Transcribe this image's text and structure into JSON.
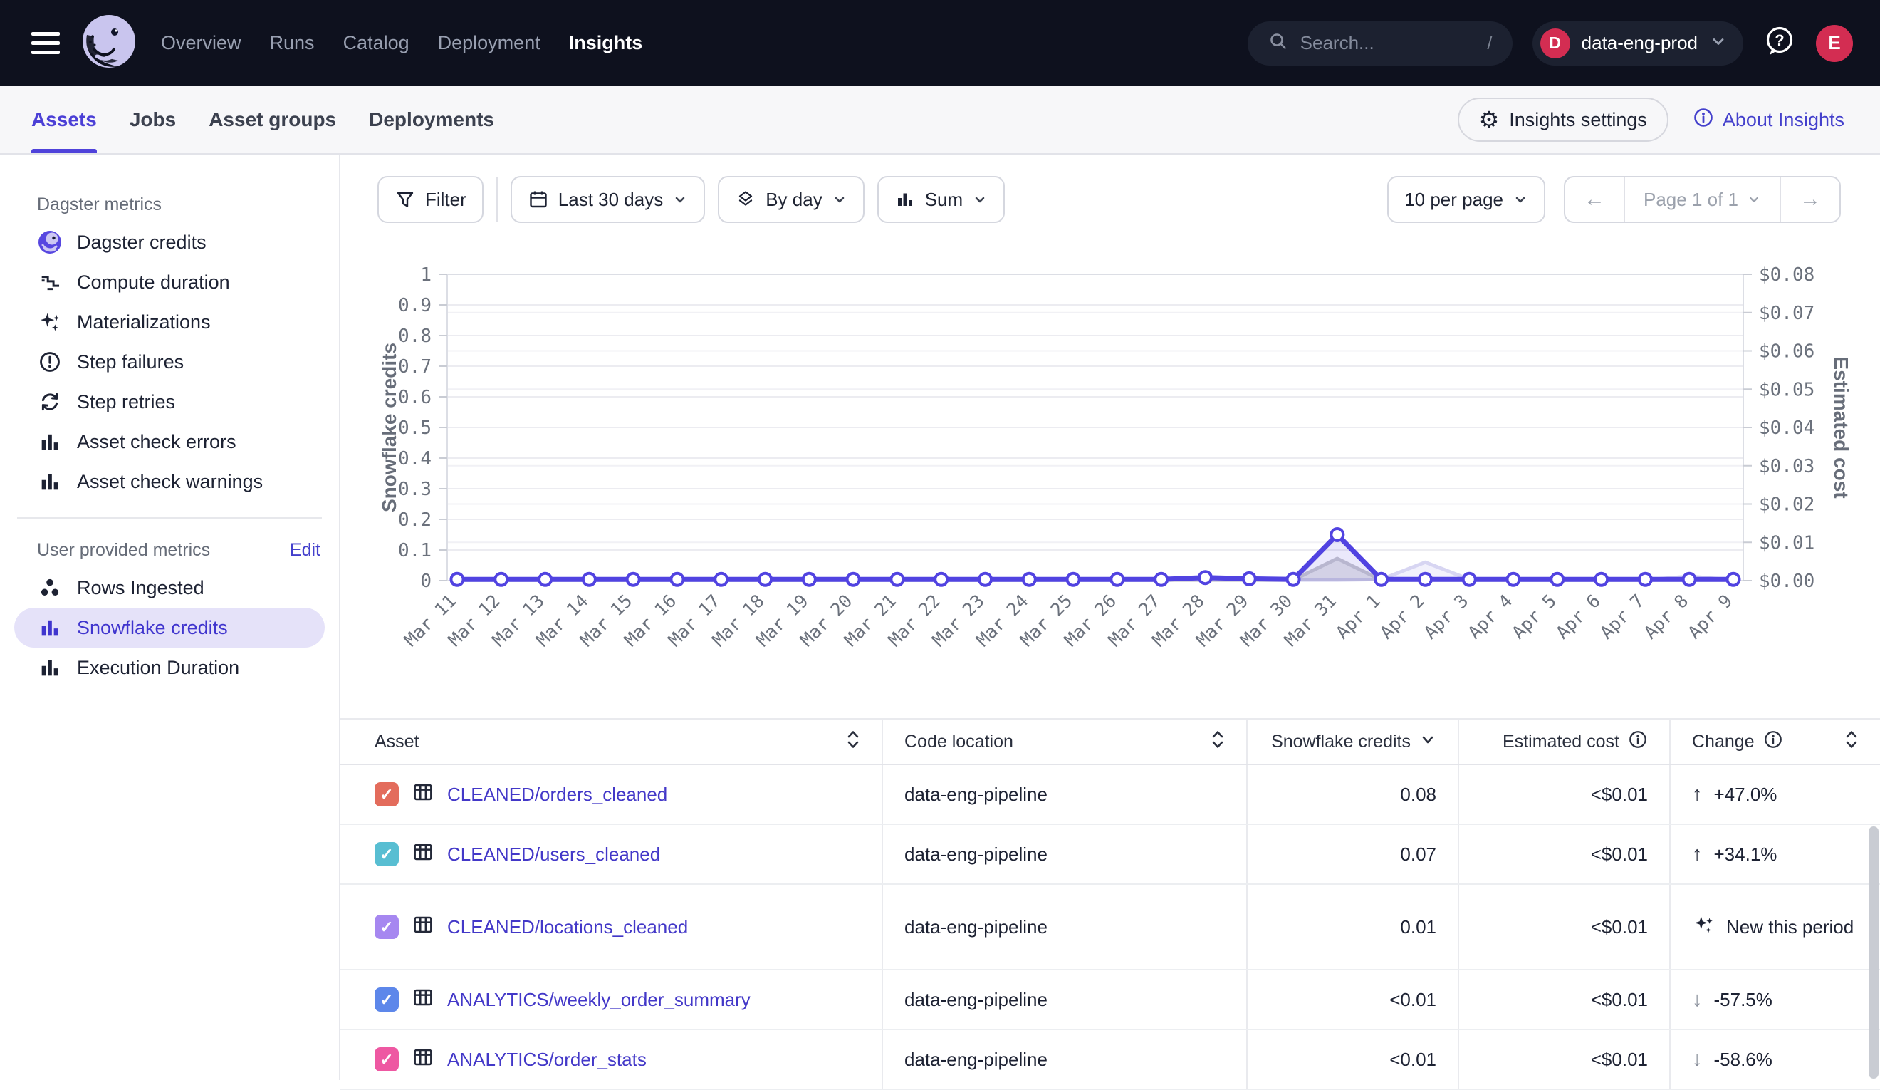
{
  "topnav": {
    "items": [
      "Overview",
      "Runs",
      "Catalog",
      "Deployment",
      "Insights"
    ],
    "active": "Insights",
    "search": {
      "placeholder": "Search...",
      "shortcut": "/"
    },
    "org": {
      "initial": "D",
      "name": "data-eng-prod"
    },
    "user_initial": "E",
    "accent": "#d32d52",
    "bg": "#0e111e"
  },
  "tabs": {
    "items": [
      "Assets",
      "Jobs",
      "Asset groups",
      "Deployments"
    ],
    "active": "Assets",
    "settings_label": "Insights settings",
    "about_label": "About Insights"
  },
  "sidebar": {
    "dagster_header": "Dagster metrics",
    "dagster_items": [
      {
        "label": "Dagster credits",
        "icon": "dagster-logo-icon"
      },
      {
        "label": "Compute duration",
        "icon": "steps-icon"
      },
      {
        "label": "Materializations",
        "icon": "sparkles-icon"
      },
      {
        "label": "Step failures",
        "icon": "alert-circle-icon"
      },
      {
        "label": "Step retries",
        "icon": "retry-icon"
      },
      {
        "label": "Asset check errors",
        "icon": "bar-chart-icon"
      },
      {
        "label": "Asset check warnings",
        "icon": "bar-chart-icon"
      }
    ],
    "user_header": "User provided metrics",
    "edit_label": "Edit",
    "user_items": [
      {
        "label": "Rows Ingested",
        "icon": "dots-icon"
      },
      {
        "label": "Snowflake credits",
        "icon": "bar-chart-icon"
      },
      {
        "label": "Execution Duration",
        "icon": "bar-chart-icon"
      }
    ],
    "selected": "Snowflake credits",
    "selected_color": "#4035ce"
  },
  "toolbar": {
    "filter_label": "Filter",
    "range_label": "Last 30 days",
    "granularity_label": "By day",
    "agg_label": "Sum",
    "per_page_label": "10 per page",
    "page_label": "Page 1 of 1"
  },
  "chart_data": {
    "type": "line",
    "title": "Snowflake credits by day (last 30 days)",
    "x": [
      "Mar 11",
      "Mar 12",
      "Mar 13",
      "Mar 14",
      "Mar 15",
      "Mar 16",
      "Mar 17",
      "Mar 18",
      "Mar 19",
      "Mar 20",
      "Mar 21",
      "Mar 22",
      "Mar 23",
      "Mar 24",
      "Mar 25",
      "Mar 26",
      "Mar 27",
      "Mar 28",
      "Mar 29",
      "Mar 30",
      "Mar 31",
      "Apr 1",
      "Apr 2",
      "Apr 3",
      "Apr 4",
      "Apr 5",
      "Apr 6",
      "Apr 7",
      "Apr 8",
      "Apr 9"
    ],
    "ylabel_left": "Snowflake credits",
    "ylabel_right": "Estimated cost",
    "ylim_left": [
      0,
      1
    ],
    "ytick_step_left": 0.1,
    "ylim_right": [
      0,
      0.08
    ],
    "ytick_step_right": 0.01,
    "grid": true,
    "legend": "none",
    "series": [
      {
        "name": "tertiary-assets",
        "color": "#d7d5f2",
        "width": 5,
        "markers": false,
        "fill": "rgba(129,120,228,0.10)",
        "values": [
          0.002,
          0.002,
          0.002,
          0.002,
          0.002,
          0.002,
          0.002,
          0.002,
          0.002,
          0.002,
          0.002,
          0.002,
          0.002,
          0.002,
          0.002,
          0.002,
          0.002,
          0.002,
          0.002,
          0.002,
          0.002,
          0.004,
          0.06,
          0.004,
          0.002,
          0.002,
          0.002,
          0.002,
          0.014,
          0.002
        ]
      },
      {
        "name": "secondary-assets",
        "color": "#c7c7cd",
        "width": 5,
        "markers": false,
        "fill": "rgba(160,162,172,0.28)",
        "values": [
          0.002,
          0.002,
          0.002,
          0.002,
          0.002,
          0.002,
          0.002,
          0.002,
          0.002,
          0.002,
          0.002,
          0.002,
          0.002,
          0.002,
          0.002,
          0.002,
          0.002,
          0.002,
          0.002,
          0.002,
          0.072,
          0.002,
          0.002,
          0.002,
          0.002,
          0.002,
          0.002,
          0.002,
          0.002,
          0.002
        ]
      },
      {
        "name": "sum-selected",
        "color": "#5143e1",
        "width": 7,
        "markers": true,
        "fill": "rgba(81,67,225,0.12)",
        "values": [
          0.004,
          0.004,
          0.004,
          0.004,
          0.004,
          0.004,
          0.004,
          0.004,
          0.004,
          0.004,
          0.004,
          0.004,
          0.004,
          0.004,
          0.004,
          0.004,
          0.004,
          0.01,
          0.006,
          0.004,
          0.15,
          0.004,
          0.004,
          0.004,
          0.004,
          0.004,
          0.004,
          0.004,
          0.004,
          0.004
        ]
      }
    ]
  },
  "table": {
    "columns": [
      {
        "label": "Asset",
        "sort": "both"
      },
      {
        "label": "Code location",
        "sort": "both"
      },
      {
        "label": "Snowflake credits",
        "sort": "desc"
      },
      {
        "label": "Estimated cost",
        "info": true
      },
      {
        "label": "Change",
        "info": true,
        "sort": "both"
      }
    ],
    "rows": [
      {
        "color": "#e36c5c",
        "asset": "CLEANED/orders_cleaned",
        "code_location": "data-eng-pipeline",
        "credits": "0.08",
        "cost": "<$0.01",
        "change": {
          "dir": "up",
          "label": "+47.0%"
        }
      },
      {
        "color": "#58bed2",
        "asset": "CLEANED/users_cleaned",
        "code_location": "data-eng-pipeline",
        "credits": "0.07",
        "cost": "<$0.01",
        "change": {
          "dir": "up",
          "label": "+34.1%"
        }
      },
      {
        "color": "#a687f0",
        "asset": "CLEANED/locations_cleaned",
        "code_location": "data-eng-pipeline",
        "credits": "0.01",
        "cost": "<$0.01",
        "change": {
          "dir": "new",
          "label": "New this period"
        }
      },
      {
        "color": "#5d87ea",
        "asset": "ANALYTICS/weekly_order_summary",
        "code_location": "data-eng-pipeline",
        "credits": "<0.01",
        "cost": "<$0.01",
        "change": {
          "dir": "down",
          "label": "-57.5%"
        }
      },
      {
        "color": "#ee58a2",
        "asset": "ANALYTICS/order_stats",
        "code_location": "data-eng-pipeline",
        "credits": "<0.01",
        "cost": "<$0.01",
        "change": {
          "dir": "down",
          "label": "-58.6%"
        }
      }
    ]
  }
}
